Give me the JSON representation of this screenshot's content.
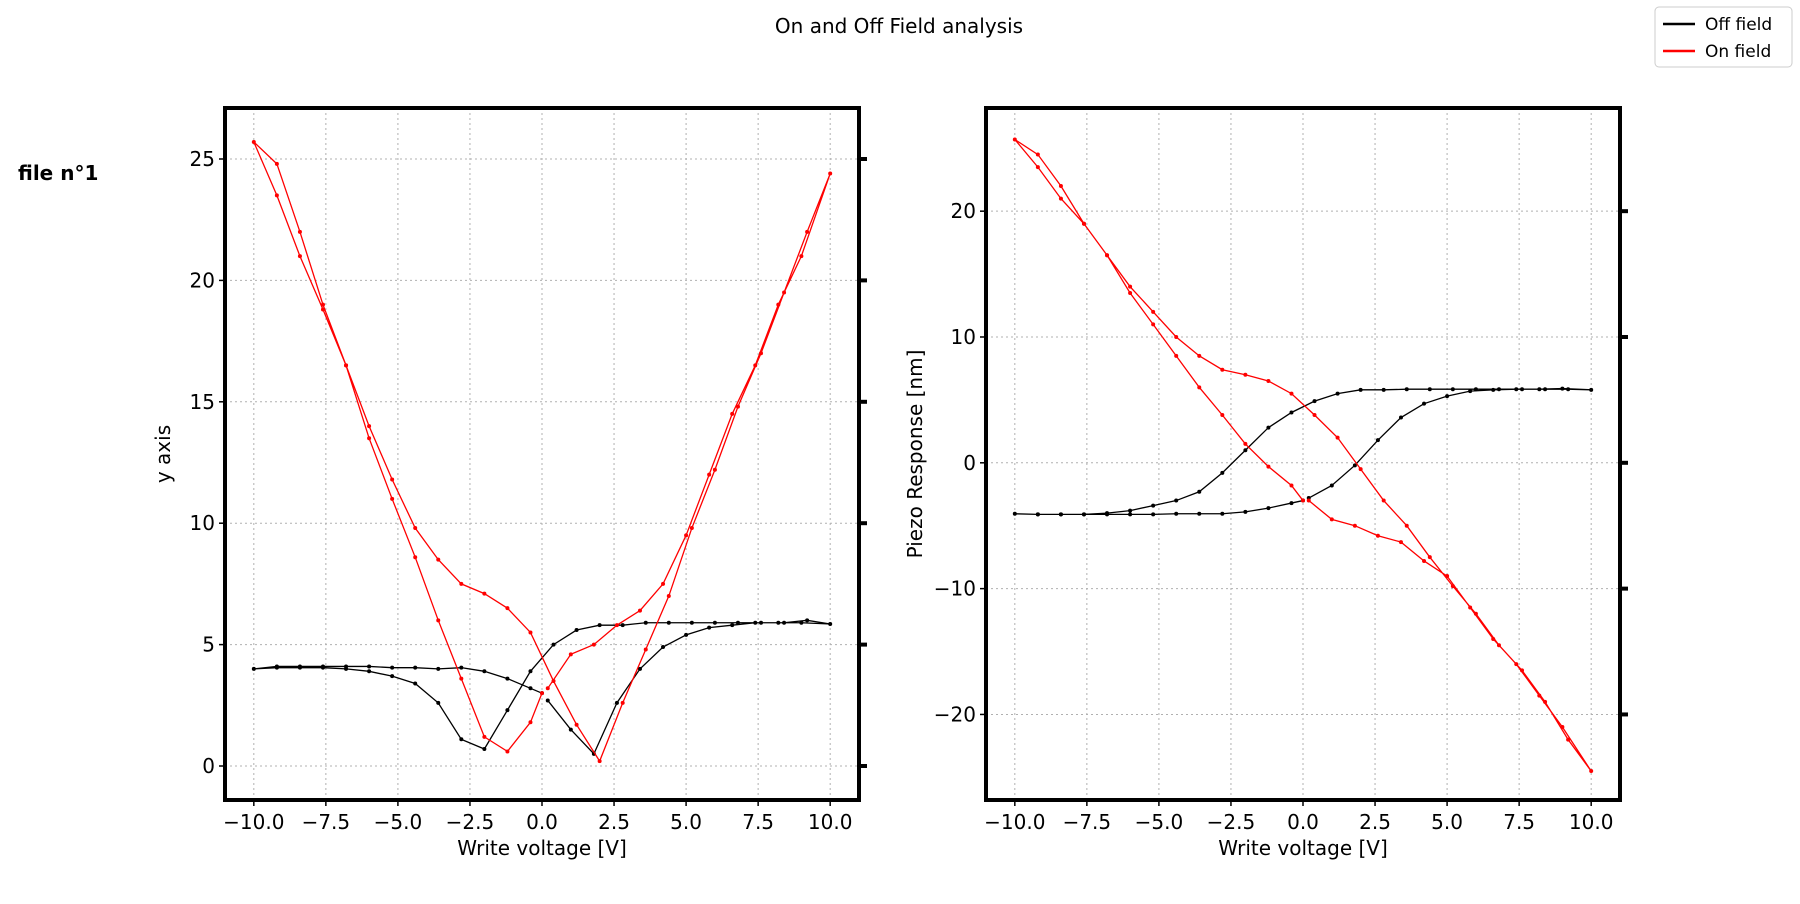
{
  "title": "On and Off Field analysis",
  "annotation": "file n°1",
  "legend_location": "upper right",
  "chart_data": [
    {
      "type": "line",
      "xlabel": "Write voltage [V]",
      "ylabel": "y axis",
      "grid": true,
      "xlim": [
        -11.0,
        11.0
      ],
      "ylim": [
        -1.4,
        27.1
      ],
      "xticks": [
        {
          "value": -10,
          "label": "−10.0"
        },
        {
          "value": -7.5,
          "label": "−7.5"
        },
        {
          "value": -5,
          "label": "−5.0"
        },
        {
          "value": -2.5,
          "label": "−2.5"
        },
        {
          "value": 0,
          "label": "0.0"
        },
        {
          "value": 2.5,
          "label": "2.5"
        },
        {
          "value": 5,
          "label": "5.0"
        },
        {
          "value": 7.5,
          "label": "7.5"
        },
        {
          "value": 10,
          "label": "10.0"
        }
      ],
      "yticks": [
        0,
        5,
        10,
        15,
        20,
        25
      ],
      "x": [
        0.2,
        1.0,
        1.8,
        2.6,
        3.4,
        4.2,
        5.0,
        5.8,
        6.6,
        7.4,
        8.2,
        9.0,
        10.0,
        9.2,
        8.4,
        7.6,
        6.8,
        6.0,
        5.2,
        4.4,
        3.6,
        2.8,
        2.0,
        1.2,
        0.4,
        -0.4,
        -1.2,
        -2.0,
        -2.8,
        -3.6,
        -4.4,
        -5.2,
        -6.0,
        -6.8,
        -7.6,
        -8.4,
        -9.2,
        -10.0,
        -9.2,
        -8.4,
        -7.6,
        -6.8,
        -6.0,
        -5.2,
        -4.4,
        -3.6,
        -2.8,
        -2.0,
        -1.2,
        -0.4,
        0.0
      ],
      "series": [
        {
          "name": "Off field",
          "color": "#000000",
          "values": [
            2.7,
            1.5,
            0.5,
            2.6,
            4.0,
            4.9,
            5.4,
            5.7,
            5.8,
            5.9,
            5.9,
            5.9,
            5.85,
            6.0,
            5.9,
            5.9,
            5.9,
            5.9,
            5.9,
            5.9,
            5.9,
            5.8,
            5.8,
            5.6,
            5.0,
            3.9,
            2.3,
            0.7,
            1.1,
            2.6,
            3.4,
            3.7,
            3.9,
            4.0,
            4.05,
            4.05,
            4.05,
            4.0,
            4.1,
            4.1,
            4.1,
            4.1,
            4.1,
            4.05,
            4.05,
            4.0,
            4.05,
            3.9,
            3.6,
            3.2,
            3.0
          ]
        },
        {
          "name": "On field",
          "color": "#ff0000",
          "values": [
            3.2,
            4.6,
            5.0,
            5.8,
            6.4,
            7.5,
            9.5,
            12.0,
            14.5,
            16.5,
            19.0,
            21.0,
            24.4,
            22.0,
            19.5,
            17.0,
            14.8,
            12.2,
            9.8,
            7.0,
            4.8,
            2.6,
            0.2,
            1.7,
            3.5,
            5.5,
            6.5,
            7.1,
            7.5,
            8.5,
            9.8,
            11.8,
            14.0,
            16.5,
            18.8,
            21.0,
            23.5,
            25.7,
            24.8,
            22.0,
            19.0,
            16.5,
            13.5,
            11.0,
            8.6,
            6.0,
            3.6,
            1.2,
            0.6,
            1.8,
            3.0
          ]
        }
      ]
    },
    {
      "type": "line",
      "xlabel": "Write voltage [V]",
      "ylabel": "Piezo Response [nm]",
      "grid": true,
      "xlim": [
        -11.0,
        11.0
      ],
      "ylim": [
        -26.8,
        28.2
      ],
      "xticks": [
        {
          "value": -10,
          "label": "−10.0"
        },
        {
          "value": -7.5,
          "label": "−7.5"
        },
        {
          "value": -5,
          "label": "−5.0"
        },
        {
          "value": -2.5,
          "label": "−2.5"
        },
        {
          "value": 0,
          "label": "0.0"
        },
        {
          "value": 2.5,
          "label": "2.5"
        },
        {
          "value": 5,
          "label": "5.0"
        },
        {
          "value": 7.5,
          "label": "7.5"
        },
        {
          "value": 10,
          "label": "10.0"
        }
      ],
      "yticks": [
        {
          "value": -20,
          "label": "−20"
        },
        {
          "value": -10,
          "label": "−10"
        },
        0,
        10,
        20
      ],
      "x": [
        0.2,
        1.0,
        1.8,
        2.6,
        3.4,
        4.2,
        5.0,
        5.8,
        6.6,
        7.4,
        8.2,
        9.0,
        10.0,
        9.2,
        8.4,
        7.6,
        6.8,
        6.0,
        5.2,
        4.4,
        3.6,
        2.8,
        2.0,
        1.2,
        0.4,
        -0.4,
        -1.2,
        -2.0,
        -2.8,
        -3.6,
        -4.4,
        -5.2,
        -6.0,
        -6.8,
        -7.6,
        -8.4,
        -9.2,
        -10.0,
        -9.2,
        -8.4,
        -7.6,
        -6.8,
        -6.0,
        -5.2,
        -4.4,
        -3.6,
        -2.8,
        -2.0,
        -1.2,
        -0.4,
        0.0
      ],
      "series": [
        {
          "name": "Off field",
          "color": "#000000",
          "values": [
            -2.8,
            -1.8,
            -0.2,
            1.8,
            3.6,
            4.7,
            5.3,
            5.7,
            5.8,
            5.85,
            5.85,
            5.9,
            5.8,
            5.85,
            5.85,
            5.85,
            5.85,
            5.85,
            5.85,
            5.85,
            5.85,
            5.8,
            5.8,
            5.5,
            4.9,
            4.0,
            2.8,
            1.0,
            -0.8,
            -2.3,
            -3.0,
            -3.4,
            -3.8,
            -4.0,
            -4.1,
            -4.1,
            -4.1,
            -4.05,
            -4.1,
            -4.1,
            -4.1,
            -4.1,
            -4.1,
            -4.1,
            -4.05,
            -4.05,
            -4.05,
            -3.9,
            -3.6,
            -3.2,
            -3.0
          ]
        },
        {
          "name": "On field",
          "color": "#ff0000",
          "values": [
            -3.0,
            -4.5,
            -5.0,
            -5.8,
            -6.3,
            -7.8,
            -9.0,
            -11.5,
            -14.0,
            -16.0,
            -18.5,
            -21.0,
            -24.5,
            -22.0,
            -19.0,
            -16.5,
            -14.5,
            -12.0,
            -9.8,
            -7.5,
            -5.0,
            -3.0,
            -0.5,
            2.0,
            3.8,
            5.5,
            6.5,
            7.0,
            7.4,
            8.5,
            10.0,
            12.0,
            14.0,
            16.5,
            19.0,
            21.0,
            23.5,
            25.7,
            24.5,
            22.0,
            19.0,
            16.5,
            13.5,
            11.0,
            8.5,
            6.0,
            3.8,
            1.5,
            -0.3,
            -1.8,
            -3.0
          ]
        }
      ]
    }
  ]
}
